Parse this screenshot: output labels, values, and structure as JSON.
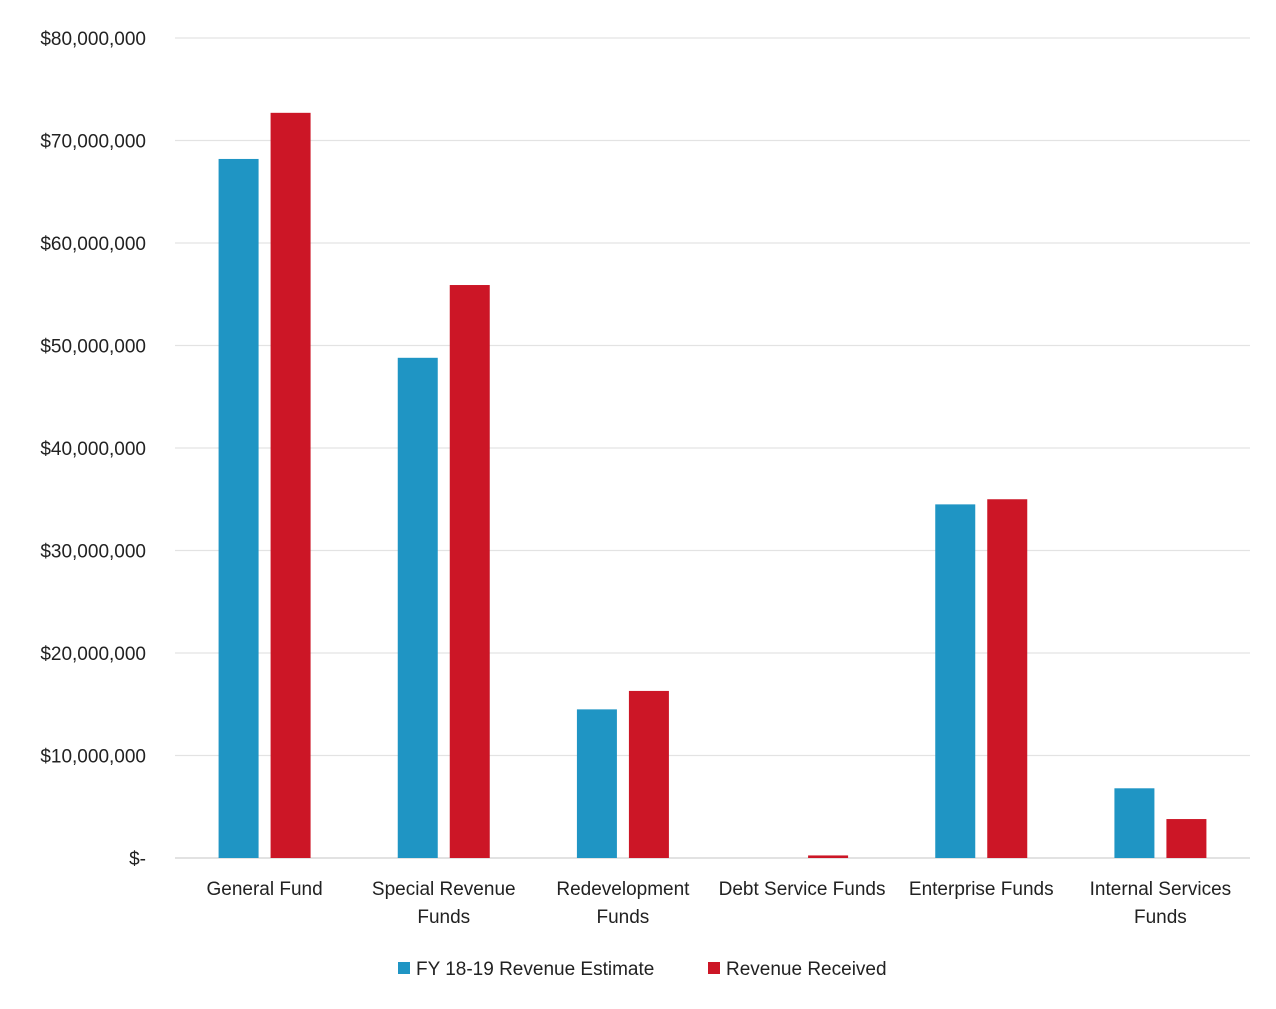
{
  "chart_data": {
    "type": "bar",
    "title": "",
    "xlabel": "",
    "ylabel": "",
    "ylim": [
      0,
      80000000
    ],
    "grid": true,
    "legend_position": "bottom",
    "y_tick_labels": [
      "$-",
      "$10,000,000",
      "$20,000,000",
      "$30,000,000",
      "$40,000,000",
      "$50,000,000",
      "$60,000,000",
      "$70,000,000",
      "$80,000,000"
    ],
    "y_tick_values": [
      0,
      10000000,
      20000000,
      30000000,
      40000000,
      50000000,
      60000000,
      70000000,
      80000000
    ],
    "categories": [
      [
        "General Fund"
      ],
      [
        "Special Revenue",
        "Funds"
      ],
      [
        "Redevelopment",
        "Funds"
      ],
      [
        "Debt Service Funds"
      ],
      [
        "Enterprise Funds"
      ],
      [
        "Internal Services",
        "Funds"
      ]
    ],
    "series": [
      {
        "name": "FY 18-19 Revenue Estimate",
        "color": "#1f95c4",
        "values": [
          68200000,
          48800000,
          14500000,
          0,
          34500000,
          6800000
        ]
      },
      {
        "name": "Revenue Received",
        "color": "#cc1626",
        "values": [
          72700000,
          55900000,
          16300000,
          250000,
          35000000,
          3800000
        ]
      }
    ]
  }
}
